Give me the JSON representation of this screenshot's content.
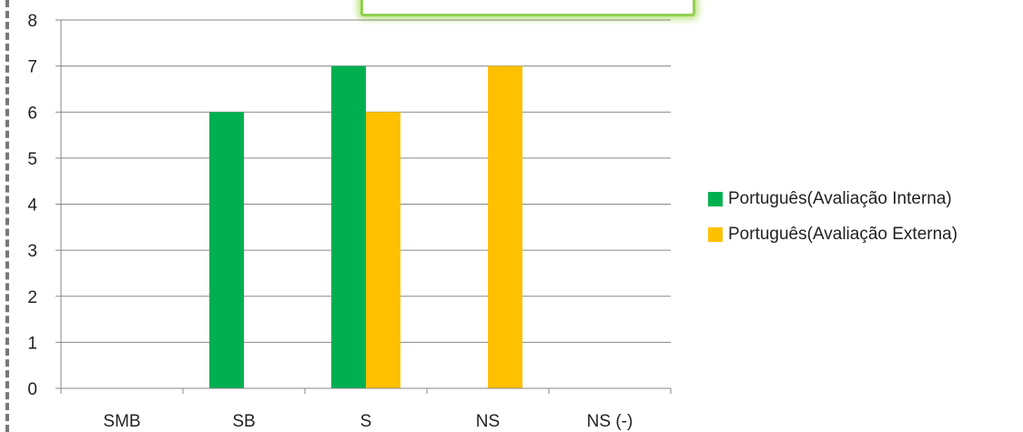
{
  "chart_data": {
    "type": "bar",
    "categories": [
      "SMB",
      "SB",
      "S",
      "NS",
      "NS (-)"
    ],
    "series": [
      {
        "name": "Português(Avaliação Interna)",
        "color": "#00b050",
        "values": [
          0,
          6,
          7,
          0,
          0
        ]
      },
      {
        "name": "Português(Avaliação Externa)",
        "color": "#ffc000",
        "values": [
          0,
          0,
          6,
          7,
          0
        ]
      }
    ],
    "title": "",
    "xlabel": "",
    "ylabel": "",
    "ylim": [
      0,
      8
    ],
    "yticks": [
      "0",
      "1",
      "2",
      "3",
      "4",
      "5",
      "6",
      "7",
      "8"
    ],
    "grid": true,
    "legend_position": "right"
  }
}
